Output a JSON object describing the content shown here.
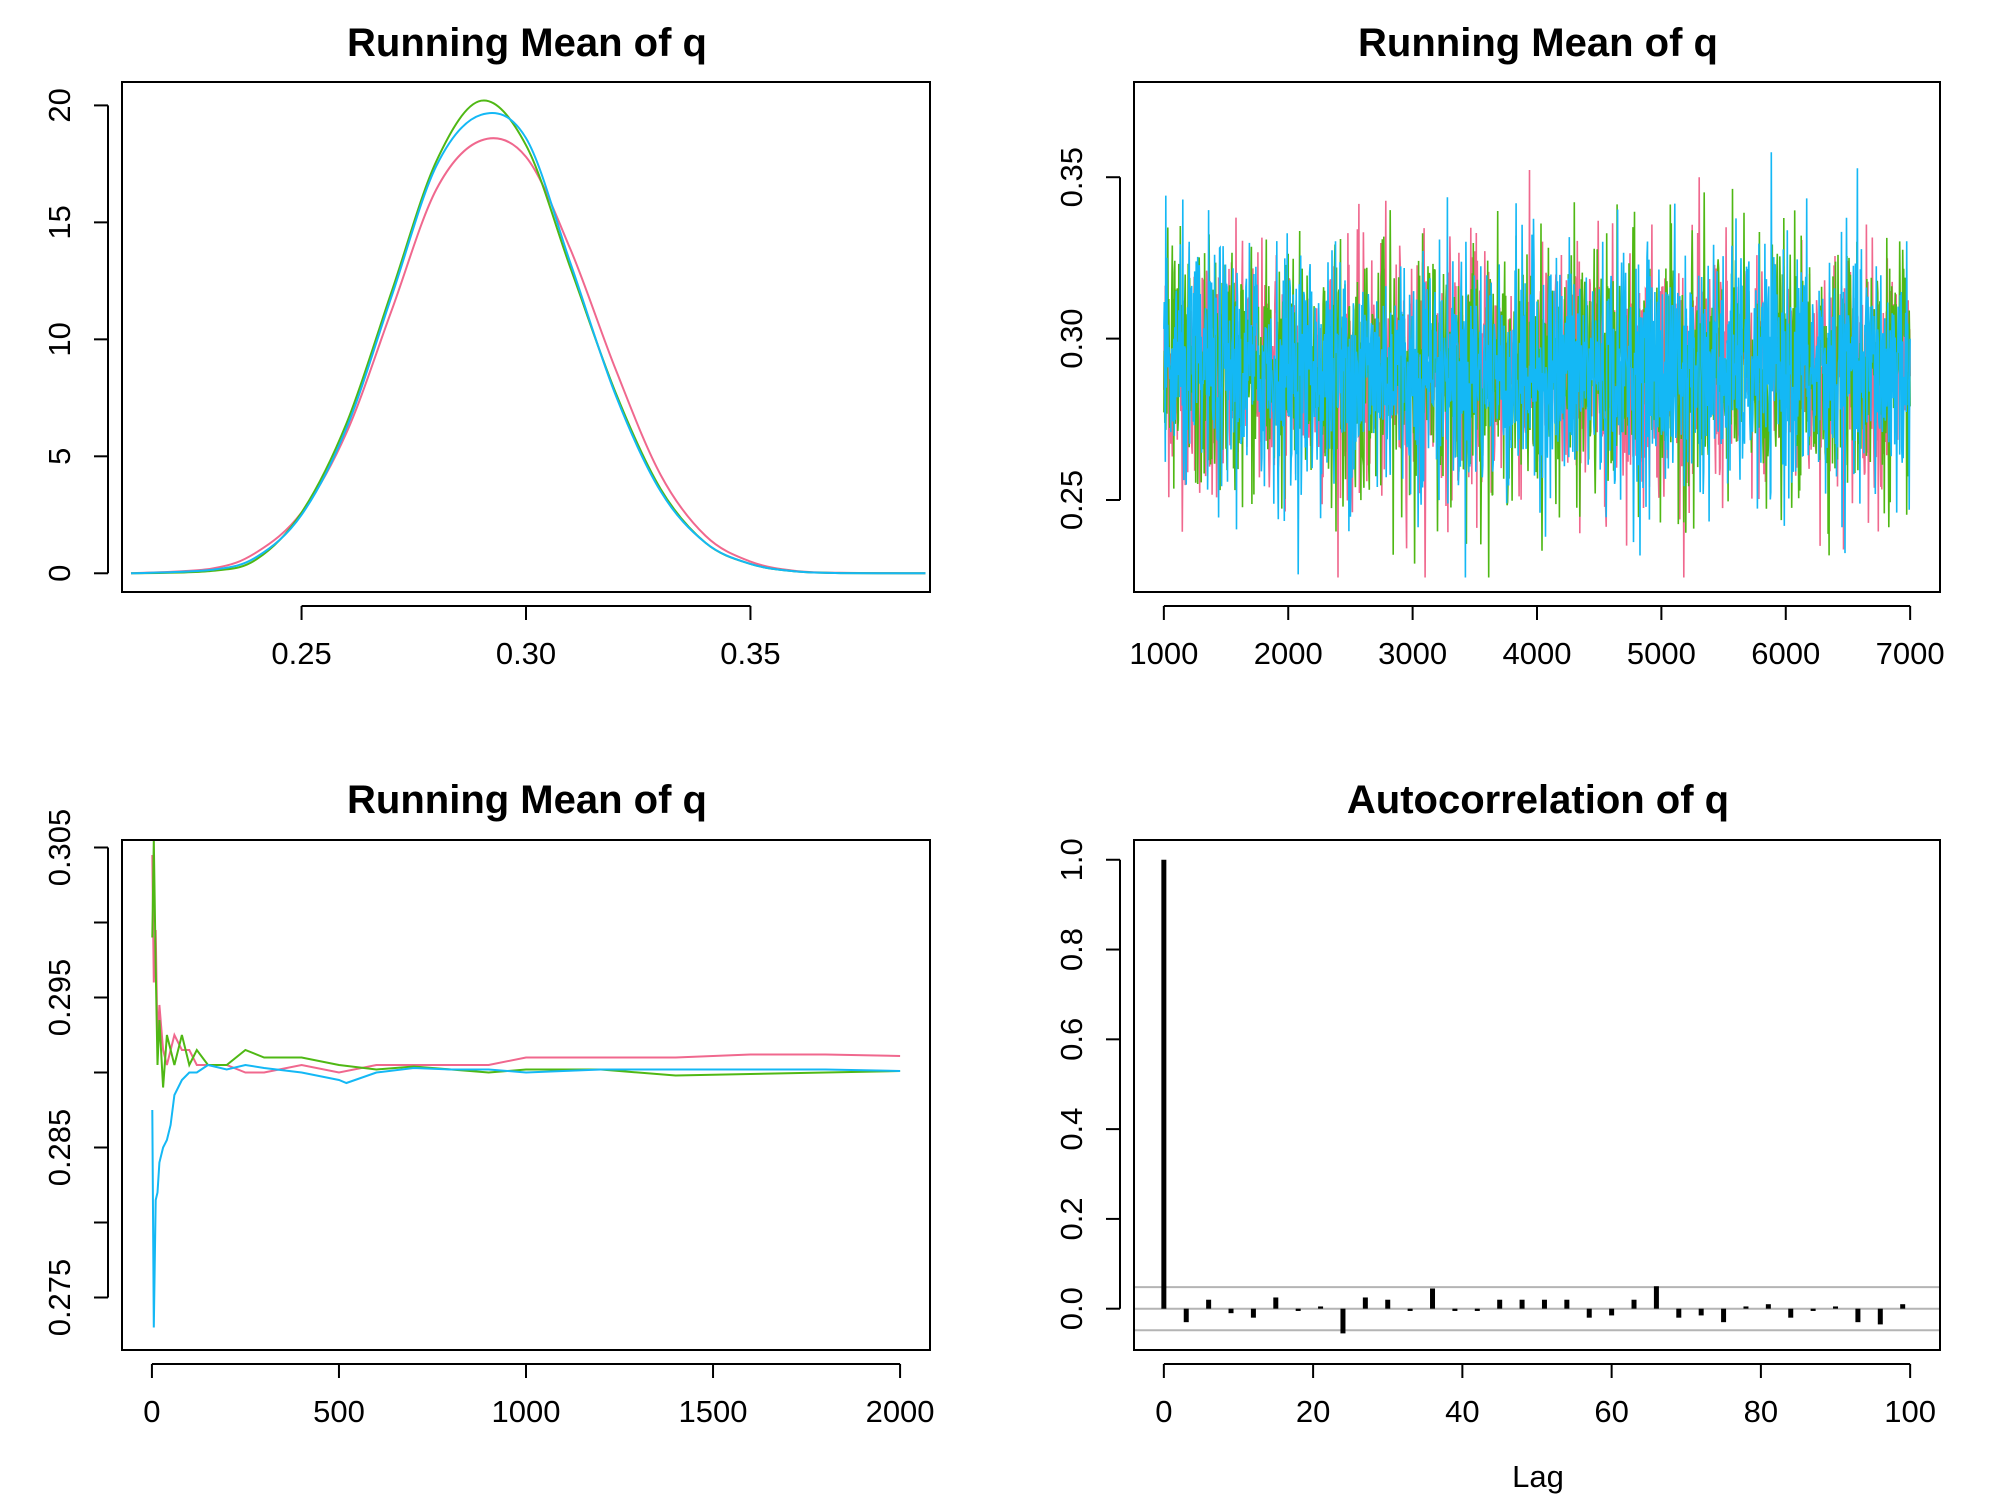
{
  "colors": {
    "chain1": "#F0688E",
    "chain2": "#4FB814",
    "chain3": "#14B8F5",
    "bars": "#000000",
    "conf_band": "#B4B4B4",
    "frame": "#000000"
  },
  "chart_data": [
    {
      "type": "line",
      "title": "Running Mean of q",
      "xlabel": "",
      "ylabel": "",
      "xlim": [
        0.21,
        0.39
      ],
      "ylim": [
        -0.8,
        21
      ],
      "x_ticks": [
        "0.25",
        "0.30",
        "0.35"
      ],
      "y_ticks": [
        "0",
        "5",
        "10",
        "15",
        "20"
      ],
      "grid": false,
      "series": [
        {
          "color_key": "chain1",
          "x": [
            0.212,
            0.23,
            0.24,
            0.25,
            0.26,
            0.27,
            0.28,
            0.29,
            0.3,
            0.31,
            0.32,
            0.33,
            0.34,
            0.35,
            0.36,
            0.37,
            0.389
          ],
          "y": [
            0,
            0.2,
            0.9,
            2.6,
            6.0,
            11.2,
            16.4,
            18.5,
            17.8,
            13.8,
            8.7,
            4.2,
            1.6,
            0.5,
            0.1,
            0.02,
            0
          ]
        },
        {
          "color_key": "chain2",
          "x": [
            0.212,
            0.23,
            0.24,
            0.25,
            0.26,
            0.27,
            0.28,
            0.29,
            0.3,
            0.31,
            0.32,
            0.33,
            0.34,
            0.35,
            0.36,
            0.37,
            0.389
          ],
          "y": [
            0,
            0.1,
            0.6,
            2.6,
            6.4,
            12.0,
            17.6,
            20.2,
            18.3,
            13.0,
            7.7,
            3.6,
            1.3,
            0.4,
            0.08,
            0.01,
            0
          ]
        },
        {
          "color_key": "chain3",
          "x": [
            0.212,
            0.23,
            0.24,
            0.25,
            0.26,
            0.27,
            0.28,
            0.29,
            0.3,
            0.31,
            0.32,
            0.33,
            0.34,
            0.35,
            0.36,
            0.37,
            0.389
          ],
          "y": [
            0,
            0.15,
            0.7,
            2.5,
            6.2,
            11.8,
            17.4,
            19.6,
            18.6,
            13.2,
            7.6,
            3.5,
            1.3,
            0.4,
            0.08,
            0.01,
            0
          ]
        }
      ]
    },
    {
      "type": "line",
      "title": "Running Mean of q",
      "xlabel": "",
      "ylabel": "",
      "xlim": [
        760,
        7240
      ],
      "ylim": [
        0.2215,
        0.3795
      ],
      "x_ticks": [
        "1000",
        "2000",
        "3000",
        "4000",
        "5000",
        "6000",
        "7000"
      ],
      "y_ticks": [
        "0.25",
        "0.30",
        "0.35"
      ],
      "grid": false,
      "trace": {
        "x_start": 1000,
        "x_end": 7000,
        "center": 0.29,
        "sd": 0.019,
        "min": 0.226,
        "max": 0.373
      },
      "series": [
        {
          "color_key": "chain1"
        },
        {
          "color_key": "chain2"
        },
        {
          "color_key": "chain3"
        }
      ]
    },
    {
      "type": "line",
      "title": "Running Mean of q",
      "xlabel": "",
      "ylabel": "",
      "xlim": [
        -80,
        2080
      ],
      "ylim": [
        0.2715,
        0.3055
      ],
      "x_ticks": [
        "0",
        "500",
        "1000",
        "1500",
        "2000"
      ],
      "y_ticks": [
        "0.275",
        "0.285",
        "0.295",
        "0.305"
      ],
      "y_minor_ticks": [
        0.28,
        0.29,
        0.3
      ],
      "grid": false,
      "series": [
        {
          "color_key": "chain1",
          "x": [
            1,
            5,
            10,
            15,
            20,
            30,
            40,
            60,
            80,
            100,
            120,
            150,
            200,
            250,
            300,
            400,
            500,
            600,
            700,
            800,
            900,
            1000,
            1200,
            1400,
            1600,
            1800,
            2000
          ],
          "y": [
            0.3045,
            0.296,
            0.2995,
            0.292,
            0.2945,
            0.2915,
            0.2905,
            0.2925,
            0.2915,
            0.2915,
            0.2905,
            0.2905,
            0.2905,
            0.29,
            0.29,
            0.2905,
            0.29,
            0.2905,
            0.2905,
            0.2905,
            0.2905,
            0.291,
            0.291,
            0.291,
            0.2912,
            0.2912,
            0.2911
          ]
        },
        {
          "color_key": "chain2",
          "x": [
            1,
            5,
            10,
            15,
            20,
            30,
            40,
            60,
            80,
            100,
            120,
            150,
            200,
            250,
            300,
            400,
            500,
            600,
            700,
            800,
            900,
            1000,
            1200,
            1400,
            1600,
            1800,
            2000
          ],
          "y": [
            0.299,
            0.3055,
            0.297,
            0.2905,
            0.2935,
            0.289,
            0.2925,
            0.2905,
            0.2925,
            0.2905,
            0.2915,
            0.2905,
            0.2905,
            0.2915,
            0.291,
            0.291,
            0.2905,
            0.2902,
            0.2904,
            0.2902,
            0.29,
            0.2902,
            0.2902,
            0.2898,
            0.2899,
            0.29,
            0.2901
          ]
        },
        {
          "color_key": "chain3",
          "x": [
            1,
            5,
            10,
            15,
            20,
            30,
            40,
            50,
            60,
            80,
            100,
            120,
            150,
            200,
            250,
            300,
            400,
            500,
            520,
            600,
            700,
            800,
            900,
            1000,
            1200,
            1400,
            1600,
            1800,
            2000
          ],
          "y": [
            0.2875,
            0.273,
            0.2815,
            0.282,
            0.284,
            0.285,
            0.2855,
            0.2865,
            0.2885,
            0.2895,
            0.29,
            0.29,
            0.2905,
            0.2902,
            0.2905,
            0.2903,
            0.29,
            0.2895,
            0.2893,
            0.29,
            0.2903,
            0.2902,
            0.2902,
            0.29,
            0.2902,
            0.2902,
            0.2902,
            0.2902,
            0.2901
          ]
        }
      ]
    },
    {
      "type": "bar",
      "title": "Autocorrelation of q",
      "xlabel": "Lag",
      "ylabel": "",
      "xlim": [
        -4,
        104
      ],
      "ylim": [
        -0.092,
        1.044
      ],
      "x_ticks": [
        "0",
        "20",
        "40",
        "60",
        "80",
        "100"
      ],
      "y_ticks": [
        "0.0",
        "0.2",
        "0.4",
        "0.6",
        "0.8",
        "1.0"
      ],
      "grid": false,
      "conf_limits": [
        0.048,
        -0.048
      ],
      "lags": [
        0,
        3,
        6,
        9,
        12,
        15,
        18,
        21,
        24,
        27,
        30,
        33,
        36,
        39,
        42,
        45,
        48,
        51,
        54,
        57,
        60,
        63,
        66,
        69,
        72,
        75,
        78,
        81,
        84,
        87,
        90,
        93,
        96,
        99
      ],
      "values": [
        1.0,
        -0.03,
        0.02,
        -0.01,
        -0.02,
        0.025,
        -0.005,
        0.005,
        -0.055,
        0.025,
        0.02,
        -0.005,
        0.045,
        -0.005,
        -0.005,
        0.02,
        0.02,
        0.02,
        0.02,
        -0.02,
        -0.015,
        0.02,
        0.05,
        -0.02,
        -0.015,
        -0.03,
        0.005,
        0.01,
        -0.02,
        -0.005,
        0.005,
        -0.03,
        -0.035,
        0.01
      ]
    }
  ]
}
